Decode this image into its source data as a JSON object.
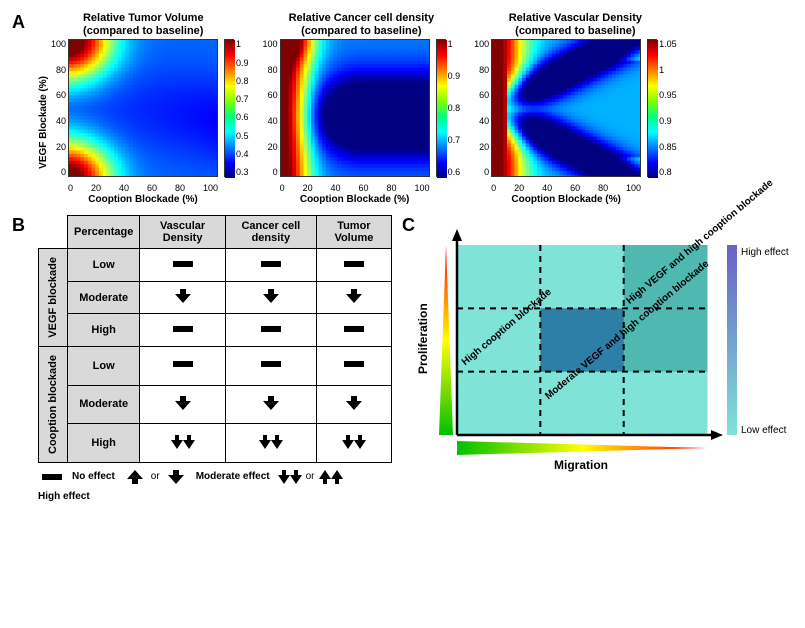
{
  "panelA": {
    "ylabel": "VEGF Blockade (%)",
    "xlabel": "Cooption Blockade (%)",
    "xticks": [
      "0",
      "20",
      "40",
      "60",
      "80",
      "100"
    ],
    "yticks": [
      "100",
      "80",
      "60",
      "40",
      "20",
      "0"
    ],
    "heatmaps": [
      {
        "title_l1": "Relative Tumor Volume",
        "title_l2": "(compared to baseline)",
        "cb": [
          "1",
          "0.9",
          "0.8",
          "0.7",
          "0.6",
          "0.5",
          "0.4",
          "0.3"
        ]
      },
      {
        "title_l1": "Relative Cancer cell density",
        "title_l2": "(compared to baseline)",
        "cb": [
          "1",
          "0.9",
          "0.8",
          "0.7",
          "0.6"
        ]
      },
      {
        "title_l1": "Relative Vascular Density",
        "title_l2": "(compared to baseline)",
        "cb": [
          "1.05",
          "1",
          "0.95",
          "0.9",
          "0.85",
          "0.8"
        ]
      }
    ]
  },
  "panelB": {
    "headers": [
      "Percentage",
      "Vascular Density",
      "Cancer cell density",
      "Tumor Volume"
    ],
    "groups": [
      {
        "label": "VEGF blockade",
        "rows": [
          {
            "p": "Low",
            "cells": [
              "none",
              "none",
              "none"
            ]
          },
          {
            "p": "Moderate",
            "cells": [
              "down",
              "down",
              "down"
            ]
          },
          {
            "p": "High",
            "cells": [
              "none",
              "none",
              "none"
            ]
          }
        ]
      },
      {
        "label": "Cooption blockade",
        "rows": [
          {
            "p": "Low",
            "cells": [
              "none",
              "none",
              "none"
            ]
          },
          {
            "p": "Moderate",
            "cells": [
              "down",
              "down",
              "down"
            ]
          },
          {
            "p": "High",
            "cells": [
              "ddown",
              "ddown",
              "ddown"
            ]
          }
        ]
      }
    ],
    "legend": {
      "none": "No effect",
      "mod": "Moderate effect",
      "high": "High effect"
    }
  },
  "panelC": {
    "yaxis": "Proliferation",
    "xaxis": "Migration",
    "high": "High effect",
    "low": "Low effect",
    "regions": {
      "r1": "High cooption blockade",
      "r2": "Moderate VEGF and high cooption blockade",
      "r3": "High VEGF and high cooption blockade"
    }
  },
  "colors": {
    "jet_stops": [
      "#7f0000",
      "#ff0000",
      "#ff7f00",
      "#ffff00",
      "#7fff00",
      "#00ff7f",
      "#00ffff",
      "#007fff",
      "#0000ff",
      "#00007f"
    ],
    "grad_stops": [
      "#ff0000",
      "#ffff00",
      "#00c000"
    ],
    "teal_light": "#7fe3d8",
    "teal_mid": "#4fb8b0",
    "teal_dark": "#2e7fa8",
    "c_violet": "#6b5fc7"
  }
}
